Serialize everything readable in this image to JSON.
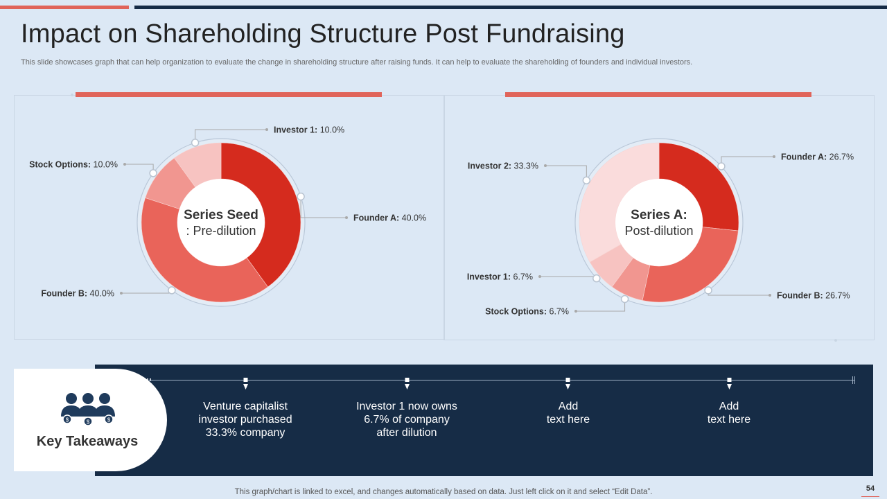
{
  "header": {
    "title": "Impact on Shareholding Structure Post Fundraising",
    "subtitle": "This slide showcases graph that can help organization to evaluate the change in shareholding structure after raising funds. It can help to  evaluate the shareholding of founders and individual investors."
  },
  "chart_data": [
    {
      "type": "pie",
      "variant": "donut",
      "title_line1": "Series Seed",
      "title_line2": ": Pre-dilution",
      "categories": [
        "Founder A",
        "Founder B",
        "Stock Options",
        "Investor 1"
      ],
      "values": [
        40.0,
        40.0,
        10.0,
        10.0
      ],
      "value_labels": [
        "40.0%",
        "40.0%",
        "10.0%",
        "10.0%"
      ],
      "colors": [
        "#d52b1e",
        "#e9645a",
        "#f19690",
        "#f7c3c1"
      ]
    },
    {
      "type": "pie",
      "variant": "donut",
      "title_line1": "Series A:",
      "title_line2": "Post-dilution",
      "categories": [
        "Founder A",
        "Founder B",
        "Stock Options",
        "Investor 1",
        "Investor 2"
      ],
      "values": [
        26.7,
        26.7,
        6.7,
        6.7,
        33.3
      ],
      "value_labels": [
        "26.7%",
        "26.7%",
        "6.7%",
        "6.7%",
        "33.3%"
      ],
      "colors": [
        "#d52b1e",
        "#e9645a",
        "#f19690",
        "#f7c3c1",
        "#fadcdc"
      ]
    }
  ],
  "takeaways": {
    "title": "Key Takeaways",
    "icon": "people-money-icon",
    "items": [
      "Venture capitalist\ninvestor purchased\n33.3% company",
      "Investor  1 now owns\n6.7% of company\nafter dilution",
      "Add\ntext here",
      "Add\ntext here"
    ]
  },
  "footer": {
    "note": "This graph/chart is linked to excel,  and changes automatically based on data. Just left click on it and select “Edit Data”.",
    "page": "54"
  }
}
